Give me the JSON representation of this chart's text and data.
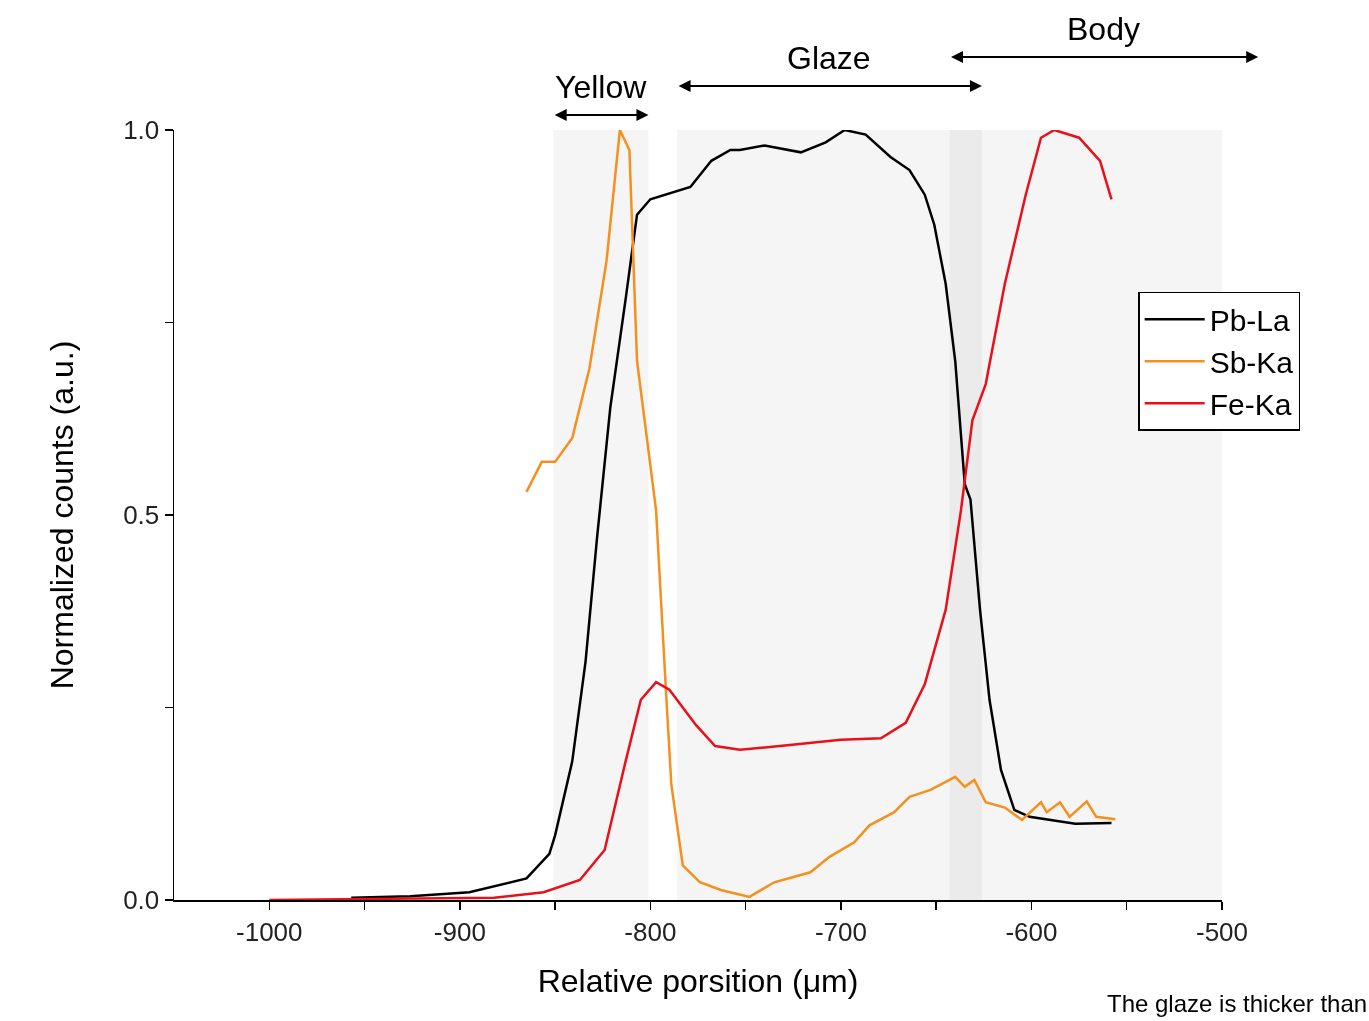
{
  "chart_data": {
    "type": "line",
    "xlabel": "Relative porsition (μm)",
    "ylabel": "Normalized counts (a.u.)",
    "xlim": [
      -1050,
      -500
    ],
    "ylim": [
      0,
      1
    ],
    "xticks": [
      -1000,
      {
        "value": -950,
        "label": null
      },
      -900,
      {
        "value": -850,
        "label": null
      },
      -800,
      {
        "value": -750,
        "label": null
      },
      -700,
      {
        "value": -650,
        "label": null
      },
      -600,
      {
        "value": -550,
        "label": null
      },
      -500
    ],
    "yticks": [
      {
        "value": 0,
        "label": "0.0"
      },
      {
        "value": 0.25,
        "label": null
      },
      {
        "value": 0.5,
        "label": "0.5"
      },
      {
        "value": 0.75,
        "label": null
      },
      {
        "value": 1,
        "label": "1.0"
      }
    ],
    "grid": false,
    "legend": "right",
    "marker": "none",
    "line_style": "solid",
    "series": [
      {
        "name": "Pb-La",
        "color": "#000000",
        "x": [
          -957,
          -926,
          -895,
          -865,
          -853,
          -850,
          -841,
          -834,
          -828,
          -821,
          -813,
          -807,
          -800,
          -779,
          -768,
          -758,
          -753,
          -740,
          -721,
          -708,
          -698,
          -687,
          -674,
          -664,
          -656,
          -651,
          -645,
          -640,
          -635,
          -632,
          -627,
          -622,
          -616,
          -609,
          -601,
          -577,
          -558
        ],
        "values": [
          0.003,
          0.005,
          0.01,
          0.028,
          0.06,
          0.084,
          0.18,
          0.31,
          0.47,
          0.64,
          0.78,
          0.89,
          0.91,
          0.926,
          0.96,
          0.974,
          0.974,
          0.98,
          0.971,
          0.984,
          1.0,
          0.994,
          0.965,
          0.948,
          0.916,
          0.877,
          0.8,
          0.7,
          0.54,
          0.52,
          0.377,
          0.26,
          0.169,
          0.117,
          0.108,
          0.099,
          0.1
        ]
      },
      {
        "name": "Sb-Ka",
        "color": "#f5901e",
        "x": [
          -865,
          -857,
          -850,
          -841,
          -832,
          -823,
          -816,
          -811,
          -807,
          -797,
          -792,
          -789,
          -783,
          -774,
          -763,
          -748,
          -735,
          -716,
          -706,
          -693,
          -685,
          -672,
          -664,
          -653,
          -643,
          -640,
          -635,
          -630,
          -624,
          -614,
          -605,
          -595,
          -592,
          -585,
          -580,
          -571,
          -566,
          -556
        ],
        "values": [
          0.53,
          0.569,
          0.569,
          0.6,
          0.69,
          0.83,
          1.0,
          0.974,
          0.7,
          0.506,
          0.28,
          0.15,
          0.045,
          0.023,
          0.013,
          0.004,
          0.023,
          0.036,
          0.056,
          0.075,
          0.097,
          0.114,
          0.134,
          0.143,
          0.156,
          0.16,
          0.147,
          0.156,
          0.127,
          0.12,
          0.104,
          0.127,
          0.114,
          0.127,
          0.108,
          0.128,
          0.108,
          0.105
        ]
      },
      {
        "name": "Fe-Ka",
        "color": "#e8101a",
        "x": [
          -1000,
          -882,
          -856,
          -837,
          -824,
          -813,
          -805,
          -797,
          -790,
          -776,
          -766,
          -753,
          -732,
          -700,
          -679,
          -666,
          -656,
          -645,
          -637,
          -631,
          -624,
          -614,
          -603,
          -595,
          -588,
          -575,
          -564,
          -558
        ],
        "values": [
          0.0,
          0.003,
          0.01,
          0.026,
          0.065,
          0.18,
          0.26,
          0.283,
          0.273,
          0.227,
          0.2,
          0.195,
          0.2,
          0.208,
          0.21,
          0.23,
          0.28,
          0.377,
          0.506,
          0.623,
          0.67,
          0.8,
          0.916,
          0.99,
          1.0,
          0.99,
          0.96,
          0.91
        ]
      }
    ],
    "bands": [
      {
        "axis": "x",
        "from": -851,
        "to": -801,
        "label": "Yellow"
      },
      {
        "axis": "x",
        "from": -786,
        "to": -626,
        "label": "Glaze"
      },
      {
        "axis": "x",
        "from": -643,
        "to": -481,
        "label": "Body"
      }
    ],
    "annotations": [
      "The glaze is thicker than"
    ]
  }
}
